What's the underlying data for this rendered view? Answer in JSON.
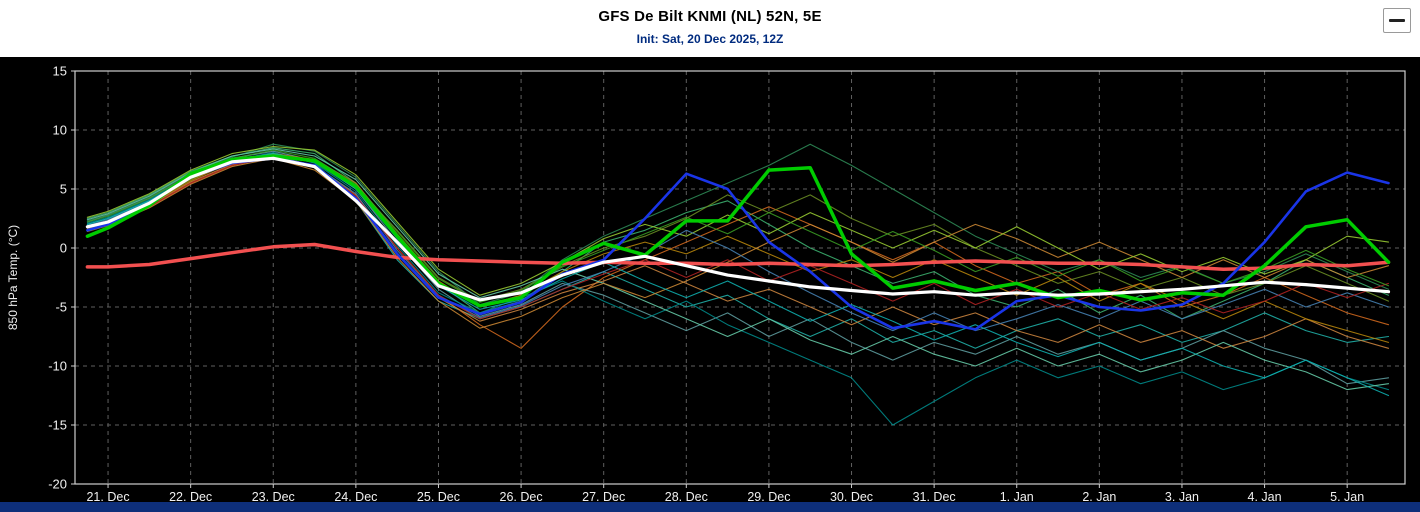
{
  "header": {
    "title": "GFS De Bilt KNMI (NL) 52N, 5E",
    "subtitle": "Init: Sat, 20 Dec 2025, 12Z"
  },
  "colors": {
    "background": "#000000",
    "header_bg": "#ffffff",
    "title_color": "#000000",
    "subtitle_color": "#002b7f",
    "grid": "#5f5f5f",
    "axis": "#cfcfcf",
    "tick_label": "#f0f0f0",
    "bottom_bar": "#0e2f7a",
    "ensemble_mean": "#ffffff",
    "climate_mean": "#f25050",
    "operational": "#00cc00",
    "control": "#1a35e8"
  },
  "chart_data": {
    "type": "line",
    "title": "GFS De Bilt KNMI (NL) 52N, 5E",
    "subtitle": "Init: Sat, 20 Dec 2025, 12Z",
    "xlabel": "",
    "ylabel": "850 hPa Temp. (°C)",
    "ylim": [
      -20,
      15
    ],
    "yticks": [
      15,
      10,
      5,
      0,
      -5,
      -10,
      -15,
      -20
    ],
    "x_domain": [
      -0.4,
      15.7
    ],
    "x_ticks": [
      0,
      1,
      2,
      3,
      4,
      5,
      6,
      7,
      8,
      9,
      10,
      11,
      12,
      13,
      14,
      15
    ],
    "x_tick_labels": [
      "21. Dec",
      "22. Dec",
      "23. Dec",
      "24. Dec",
      "25. Dec",
      "26. Dec",
      "27. Dec",
      "28. Dec",
      "29. Dec",
      "30. Dec",
      "31. Dec",
      "1. Jan",
      "2. Jan",
      "3. Jan",
      "4. Jan",
      "5. Jan"
    ],
    "grid": "dashed",
    "legend": "none",
    "x": [
      -0.25,
      0,
      0.5,
      1,
      1.5,
      2,
      2.5,
      3,
      3.5,
      4,
      4.5,
      5,
      5.5,
      6,
      6.5,
      7,
      7.5,
      8,
      8.5,
      9,
      9.5,
      10,
      10.5,
      11,
      11.5,
      12,
      12.5,
      13,
      13.5,
      14,
      14.5,
      15,
      15.5
    ],
    "highlight_series": [
      {
        "name": "climate-mean",
        "color_key": "climate_mean",
        "width": 3.5,
        "values": [
          -1.6,
          -1.6,
          -1.4,
          -0.9,
          -0.4,
          0.1,
          0.3,
          -0.3,
          -0.8,
          -1.0,
          -1.1,
          -1.2,
          -1.3,
          -1.2,
          -1.3,
          -1.3,
          -1.4,
          -1.3,
          -1.4,
          -1.5,
          -1.4,
          -1.2,
          -1.1,
          -1.2,
          -1.3,
          -1.3,
          -1.4,
          -1.6,
          -1.8,
          -1.7,
          -1.4,
          -1.5,
          -1.2
        ]
      },
      {
        "name": "control-run",
        "color_key": "control",
        "width": 2.6,
        "values": [
          1.5,
          2.0,
          3.8,
          6.0,
          7.2,
          7.6,
          7.0,
          4.2,
          -0.5,
          -4.2,
          -5.6,
          -4.6,
          -2.2,
          -1.0,
          2.5,
          6.3,
          5.0,
          0.5,
          -2.0,
          -5.0,
          -6.8,
          -6.2,
          -6.9,
          -4.5,
          -4.0,
          -5.0,
          -5.3,
          -4.8,
          -3.0,
          0.5,
          4.8,
          6.4,
          5.5
        ]
      },
      {
        "name": "operational-run",
        "color_key": "operational",
        "width": 3.5,
        "values": [
          1.0,
          1.7,
          3.6,
          6.3,
          7.5,
          7.8,
          7.4,
          5.2,
          1.0,
          -3.0,
          -4.9,
          -4.2,
          -1.2,
          0.4,
          -0.6,
          2.3,
          2.3,
          6.6,
          6.8,
          -0.5,
          -3.4,
          -2.8,
          -3.6,
          -3.0,
          -4.2,
          -3.6,
          -4.4,
          -3.8,
          -4.0,
          -1.5,
          1.8,
          2.4,
          -1.2
        ]
      },
      {
        "name": "ensemble-mean",
        "color_key": "ensemble_mean",
        "width": 3.2,
        "values": [
          1.8,
          2.2,
          3.8,
          6.0,
          7.3,
          7.6,
          6.9,
          4.0,
          0.5,
          -3.2,
          -4.4,
          -3.8,
          -2.3,
          -1.2,
          -0.7,
          -1.5,
          -2.3,
          -2.8,
          -3.3,
          -3.6,
          -3.9,
          -3.7,
          -4.0,
          -3.8,
          -4.0,
          -3.9,
          -3.7,
          -3.5,
          -3.2,
          -2.9,
          -3.1,
          -3.4,
          -3.7
        ]
      }
    ],
    "member_series": [
      {
        "name": "P01",
        "color": "#3cb371",
        "values": [
          2.5,
          3,
          4.5,
          6.5,
          7.8,
          8.5,
          8,
          5.5,
          1,
          -3,
          -5.5,
          -4.5,
          -2,
          0.5,
          1.5,
          3,
          4,
          2,
          0,
          -1.5,
          -3,
          -2,
          -4,
          -5,
          -3.5,
          -5.5,
          -4,
          -6,
          -4.5,
          -3,
          -1,
          -2.5,
          -4
        ]
      },
      {
        "name": "P02",
        "color": "#20b2aa",
        "values": [
          2,
          2.5,
          4,
          6,
          7.5,
          8,
          7.2,
          4,
          -1,
          -4.5,
          -6,
          -5,
          -3.5,
          -2,
          -3.5,
          -5,
          -4,
          -6,
          -7.5,
          -6,
          -8,
          -7,
          -8.5,
          -7,
          -6,
          -7.5,
          -6.5,
          -8,
          -7,
          -5.5,
          -7,
          -8,
          -7.5
        ]
      },
      {
        "name": "P03",
        "color": "#d2691e",
        "values": [
          1.5,
          2,
          3.5,
          5.5,
          7,
          7.8,
          7,
          4.5,
          0,
          -4,
          -6.5,
          -8.5,
          -5,
          -2.5,
          -1,
          0.5,
          2,
          3.5,
          2,
          0.5,
          -1,
          0.5,
          -1.5,
          -3,
          -2,
          -4,
          -3,
          -5,
          -4,
          -2.5,
          -4,
          -5.5,
          -6.5
        ]
      },
      {
        "name": "P04",
        "color": "#5f9ea0",
        "values": [
          2.2,
          2.8,
          4.2,
          6.2,
          7.6,
          8.2,
          7.4,
          5,
          0.5,
          -3.5,
          -5.8,
          -4.8,
          -3,
          -4,
          -5.5,
          -7,
          -5.5,
          -7.5,
          -6,
          -8,
          -9.5,
          -8,
          -9,
          -7.5,
          -9,
          -8,
          -9.5,
          -8.5,
          -7,
          -8.5,
          -9.5,
          -11.5,
          -11
        ]
      },
      {
        "name": "P05",
        "color": "#6b8e23",
        "values": [
          1.8,
          2.3,
          3.8,
          5.8,
          7.2,
          7.9,
          7.3,
          5.2,
          1.5,
          -2.5,
          -4.5,
          -3.5,
          -1.5,
          0,
          1,
          2.5,
          4.5,
          3,
          4.5,
          2.5,
          1,
          2,
          0,
          -1.5,
          -3,
          -2,
          -3.5,
          -2.5,
          -4,
          -3,
          -1.5,
          -3,
          -4.5
        ]
      },
      {
        "name": "P06",
        "color": "#2e8b57",
        "values": [
          2.3,
          2.8,
          4.3,
          6.3,
          7.7,
          8.8,
          8.2,
          6,
          2,
          -2,
          -4.8,
          -3.8,
          -1,
          1,
          2.5,
          4,
          5.5,
          7,
          8.8,
          7,
          5,
          3,
          1,
          -0.5,
          -2,
          -1,
          -2.5,
          -1.5,
          -3,
          -2,
          -0.5,
          -2,
          -3.5
        ]
      },
      {
        "name": "P07",
        "color": "#cd853f",
        "values": [
          1.6,
          2.1,
          3.6,
          5.6,
          7.1,
          7.7,
          6.8,
          4.2,
          -0.5,
          -4.2,
          -6.2,
          -5.2,
          -3.8,
          -2.8,
          -1.5,
          -3,
          -4.5,
          -3.5,
          -5,
          -6.5,
          -5,
          -6.5,
          -5.5,
          -7,
          -8,
          -6.5,
          -8,
          -7,
          -8.5,
          -7.5,
          -6,
          -7.5,
          -8.5
        ]
      },
      {
        "name": "P08",
        "color": "#008b8b",
        "values": [
          2.1,
          2.6,
          4.1,
          6.1,
          7.4,
          8.1,
          7.2,
          4.8,
          0.2,
          -3.8,
          -5.5,
          -4.2,
          -2.8,
          -4.5,
          -6,
          -4.5,
          -6.5,
          -8,
          -9.5,
          -11,
          -15,
          -13,
          -11,
          -9.5,
          -11,
          -10,
          -11.5,
          -10.5,
          -12,
          -11,
          -9.5,
          -11,
          -12
        ]
      },
      {
        "name": "P09",
        "color": "#b8860b",
        "values": [
          1.7,
          2.2,
          3.7,
          5.7,
          7.3,
          8,
          7.5,
          5.5,
          1.2,
          -2.8,
          -5,
          -4,
          -2,
          -0.5,
          0.5,
          -0.5,
          1,
          -0.5,
          -2,
          -1,
          -2.5,
          -1,
          -2.5,
          -4,
          -2.5,
          -4.5,
          -3,
          -4.5,
          -6,
          -4.5,
          -6,
          -7,
          -8
        ]
      },
      {
        "name": "P10",
        "color": "#66cdaa",
        "values": [
          2.4,
          2.9,
          4.4,
          6.4,
          7.8,
          8.4,
          7.8,
          5.8,
          1.8,
          -2.2,
          -4.2,
          -3.2,
          -1.8,
          -3,
          -4.5,
          -6,
          -7.5,
          -6,
          -7.8,
          -9,
          -7.5,
          -9,
          -10,
          -8.5,
          -10,
          -9,
          -10.5,
          -9.5,
          -8,
          -9.5,
          -10.5,
          -12,
          -11.5
        ]
      },
      {
        "name": "P11",
        "color": "#cc8833",
        "values": [
          1.4,
          1.9,
          3.4,
          5.4,
          6.9,
          7.6,
          6.6,
          4,
          -0.8,
          -4.5,
          -6.8,
          -5.8,
          -4.2,
          -3,
          -4.2,
          -2.8,
          -1.2,
          0.5,
          2,
          0.5,
          -1.2,
          0.5,
          2,
          0.8,
          -0.8,
          0.5,
          -1,
          -2.5,
          -1,
          -2.5,
          -1,
          -2.5,
          -1.5
        ]
      },
      {
        "name": "P12",
        "color": "#9acd32",
        "values": [
          2.6,
          3.1,
          4.6,
          6.6,
          8,
          8.6,
          8.3,
          6.2,
          2.2,
          -1.8,
          -4,
          -3,
          -1.2,
          0.8,
          2,
          1,
          2.8,
          1.2,
          3,
          1.5,
          0,
          1.5,
          0,
          1.8,
          0,
          -1.8,
          -0.5,
          -2,
          -0.8,
          -2.2,
          -1,
          1,
          0.5
        ]
      },
      {
        "name": "P13",
        "color": "#4682b4",
        "values": [
          1.9,
          2.4,
          3.9,
          5.9,
          7.2,
          7.8,
          7,
          4.6,
          -0.2,
          -4,
          -5.9,
          -4.9,
          -3.2,
          -2,
          -0.5,
          1.5,
          0,
          -2,
          -3.8,
          -5.5,
          -7,
          -5.5,
          -7,
          -6,
          -4.8,
          -6,
          -4.5,
          -6,
          -4.8,
          -3.5,
          -5,
          -3.8,
          -5
        ]
      },
      {
        "name": "P14",
        "color": "#0fb0b0",
        "values": [
          2,
          2.5,
          4,
          6,
          7.4,
          8,
          7.3,
          5,
          0.8,
          -3.2,
          -5.2,
          -4.4,
          -2.6,
          -1.2,
          -2.8,
          -4.2,
          -2.8,
          -4.5,
          -6.2,
          -4.8,
          -6.2,
          -7.8,
          -6.5,
          -8,
          -9.2,
          -8,
          -9.5,
          -8.5,
          -10,
          -11,
          -9.5,
          -11,
          -12.5
        ]
      },
      {
        "name": "P15",
        "color": "#b22222",
        "values": [
          1.5,
          2,
          3.5,
          5.5,
          7,
          7.7,
          6.9,
          4.4,
          0,
          -4,
          -6,
          -5,
          -3.5,
          -2.2,
          -1,
          -2.5,
          -1,
          -2.8,
          -1.5,
          -3,
          -4.5,
          -3,
          -4.8,
          -3.5,
          -5,
          -3.8,
          -5.2,
          -4.2,
          -5.5,
          -4.5,
          -3,
          -4.2,
          -3
        ]
      },
      {
        "name": "P16",
        "color": "#3a9d23",
        "values": [
          2.2,
          2.7,
          4.2,
          6.2,
          7.6,
          8.3,
          7.6,
          5.4,
          1.4,
          -2.6,
          -4.6,
          -3.6,
          -1.6,
          -0.2,
          1.2,
          2.6,
          1.2,
          3,
          1.4,
          -0.2,
          1.4,
          -0.2,
          -2,
          -0.8,
          -2.4,
          -1,
          -2.8,
          -1.6,
          -3,
          -1.8,
          -0.2,
          -1.8,
          -3.2
        ]
      }
    ]
  }
}
